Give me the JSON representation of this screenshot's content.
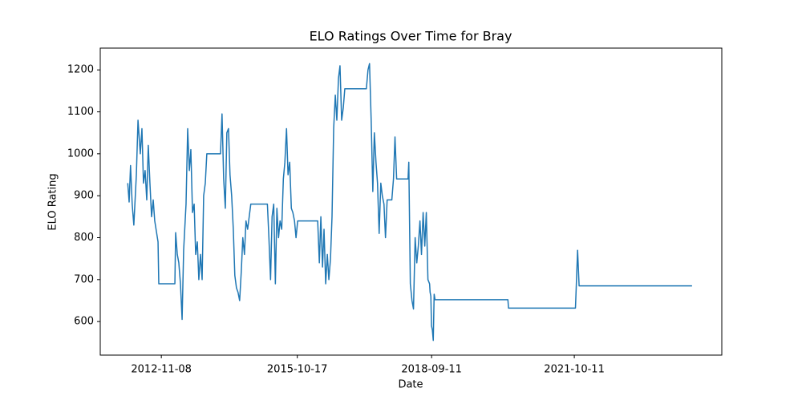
{
  "chart_data": {
    "type": "line",
    "title": "ELO Ratings Over Time for Bray",
    "xlabel": "Date",
    "ylabel": "ELO Rating",
    "color": "#1f77b4",
    "x": [
      "2012-02-17",
      "2012-02-28",
      "2012-03-10",
      "2012-03-23",
      "2012-04-05",
      "2012-04-25",
      "2012-05-08",
      "2012-05-26",
      "2012-06-08",
      "2012-06-20",
      "2012-07-03",
      "2012-07-16",
      "2012-07-28",
      "2012-08-10",
      "2012-08-23",
      "2012-09-05",
      "2012-09-17",
      "2012-10-13",
      "2012-10-19",
      "2013-02-23",
      "2013-03-01",
      "2013-03-14",
      "2013-03-26",
      "2013-04-08",
      "2013-04-21",
      "2013-05-03",
      "2013-05-22",
      "2013-06-04",
      "2013-06-17",
      "2013-06-29",
      "2013-07-12",
      "2013-07-25",
      "2013-08-06",
      "2013-08-19",
      "2013-08-31",
      "2013-09-13",
      "2013-09-26",
      "2013-10-08",
      "2013-10-21",
      "2013-11-02",
      "2014-02-18",
      "2014-03-02",
      "2014-03-15",
      "2014-03-28",
      "2014-04-09",
      "2014-04-22",
      "2014-05-04",
      "2014-05-17",
      "2014-05-30",
      "2014-06-11",
      "2014-06-24",
      "2014-07-06",
      "2014-07-19",
      "2014-08-01",
      "2014-08-13",
      "2014-08-26",
      "2014-09-07",
      "2014-09-20",
      "2014-10-15",
      "2015-02-23",
      "2015-03-07",
      "2015-03-20",
      "2015-04-01",
      "2015-04-14",
      "2015-04-27",
      "2015-05-09",
      "2015-05-22",
      "2015-06-03",
      "2015-06-16",
      "2015-06-29",
      "2015-07-11",
      "2015-07-24",
      "2015-08-05",
      "2015-08-18",
      "2015-08-31",
      "2015-09-12",
      "2015-09-25",
      "2015-10-07",
      "2015-10-20",
      "2016-03-26",
      "2016-04-08",
      "2016-04-20",
      "2016-05-03",
      "2016-05-15",
      "2016-05-28",
      "2016-06-10",
      "2016-06-22",
      "2016-07-05",
      "2016-07-17",
      "2016-07-30",
      "2016-08-12",
      "2016-08-24",
      "2016-09-06",
      "2016-09-18",
      "2016-10-01",
      "2016-10-14",
      "2016-10-26",
      "2017-04-14",
      "2017-04-27",
      "2017-05-09",
      "2017-05-22",
      "2017-06-04",
      "2017-06-16",
      "2017-06-29",
      "2017-07-11",
      "2017-07-24",
      "2017-08-06",
      "2017-08-18",
      "2017-08-31",
      "2017-09-12",
      "2017-09-25",
      "2017-11-01",
      "2017-11-14",
      "2017-11-26",
      "2017-12-09",
      "2017-12-22",
      "2018-03-09",
      "2018-03-15",
      "2018-03-27",
      "2018-04-09",
      "2018-04-21",
      "2018-05-04",
      "2018-05-17",
      "2018-05-29",
      "2018-06-11",
      "2018-06-23",
      "2018-07-06",
      "2018-07-19",
      "2018-07-31",
      "2018-08-13",
      "2018-08-26",
      "2018-08-30",
      "2018-09-05",
      "2018-09-10",
      "2018-09-17",
      "2018-09-24",
      "2018-10-01",
      "2018-10-08",
      "2020-05-05",
      "2020-05-10",
      "2021-10-20",
      "2021-10-26",
      "2021-11-06",
      "2021-11-18",
      "2024-04-27"
    ],
    "values": [
      930,
      885,
      972,
      880,
      830,
      950,
      1080,
      1000,
      1060,
      930,
      960,
      890,
      1020,
      930,
      850,
      890,
      840,
      790,
      690,
      690,
      812,
      760,
      740,
      690,
      605,
      770,
      880,
      1060,
      960,
      1010,
      860,
      880,
      760,
      790,
      700,
      760,
      700,
      900,
      930,
      1000,
      1000,
      1095,
      940,
      870,
      1050,
      1060,
      950,
      900,
      820,
      710,
      680,
      670,
      650,
      720,
      800,
      760,
      840,
      820,
      880,
      880,
      800,
      700,
      850,
      880,
      690,
      870,
      800,
      840,
      820,
      940,
      980,
      1060,
      950,
      980,
      870,
      860,
      840,
      800,
      840,
      840,
      740,
      850,
      730,
      820,
      690,
      760,
      700,
      750,
      850,
      1060,
      1140,
      1080,
      1180,
      1210,
      1080,
      1110,
      1155,
      1155,
      1200,
      1215,
      1080,
      910,
      1050,
      980,
      930,
      810,
      930,
      900,
      880,
      800,
      890,
      890,
      940,
      1040,
      940,
      940,
      940,
      980,
      690,
      650,
      630,
      800,
      740,
      780,
      840,
      760,
      860,
      780,
      860,
      700,
      690,
      670,
      660,
      590,
      580,
      555,
      665,
      652,
      652,
      632,
      632,
      680,
      770,
      685,
      685
    ],
    "xlim": [
      "2011-07-15",
      "2024-12-18"
    ],
    "xticks": [
      "2012-11-08",
      "2015-10-17",
      "2018-09-11",
      "2021-10-11"
    ],
    "ylim": [
      520,
      1252
    ],
    "yticks": [
      600,
      700,
      800,
      900,
      1000,
      1100,
      1200
    ]
  }
}
